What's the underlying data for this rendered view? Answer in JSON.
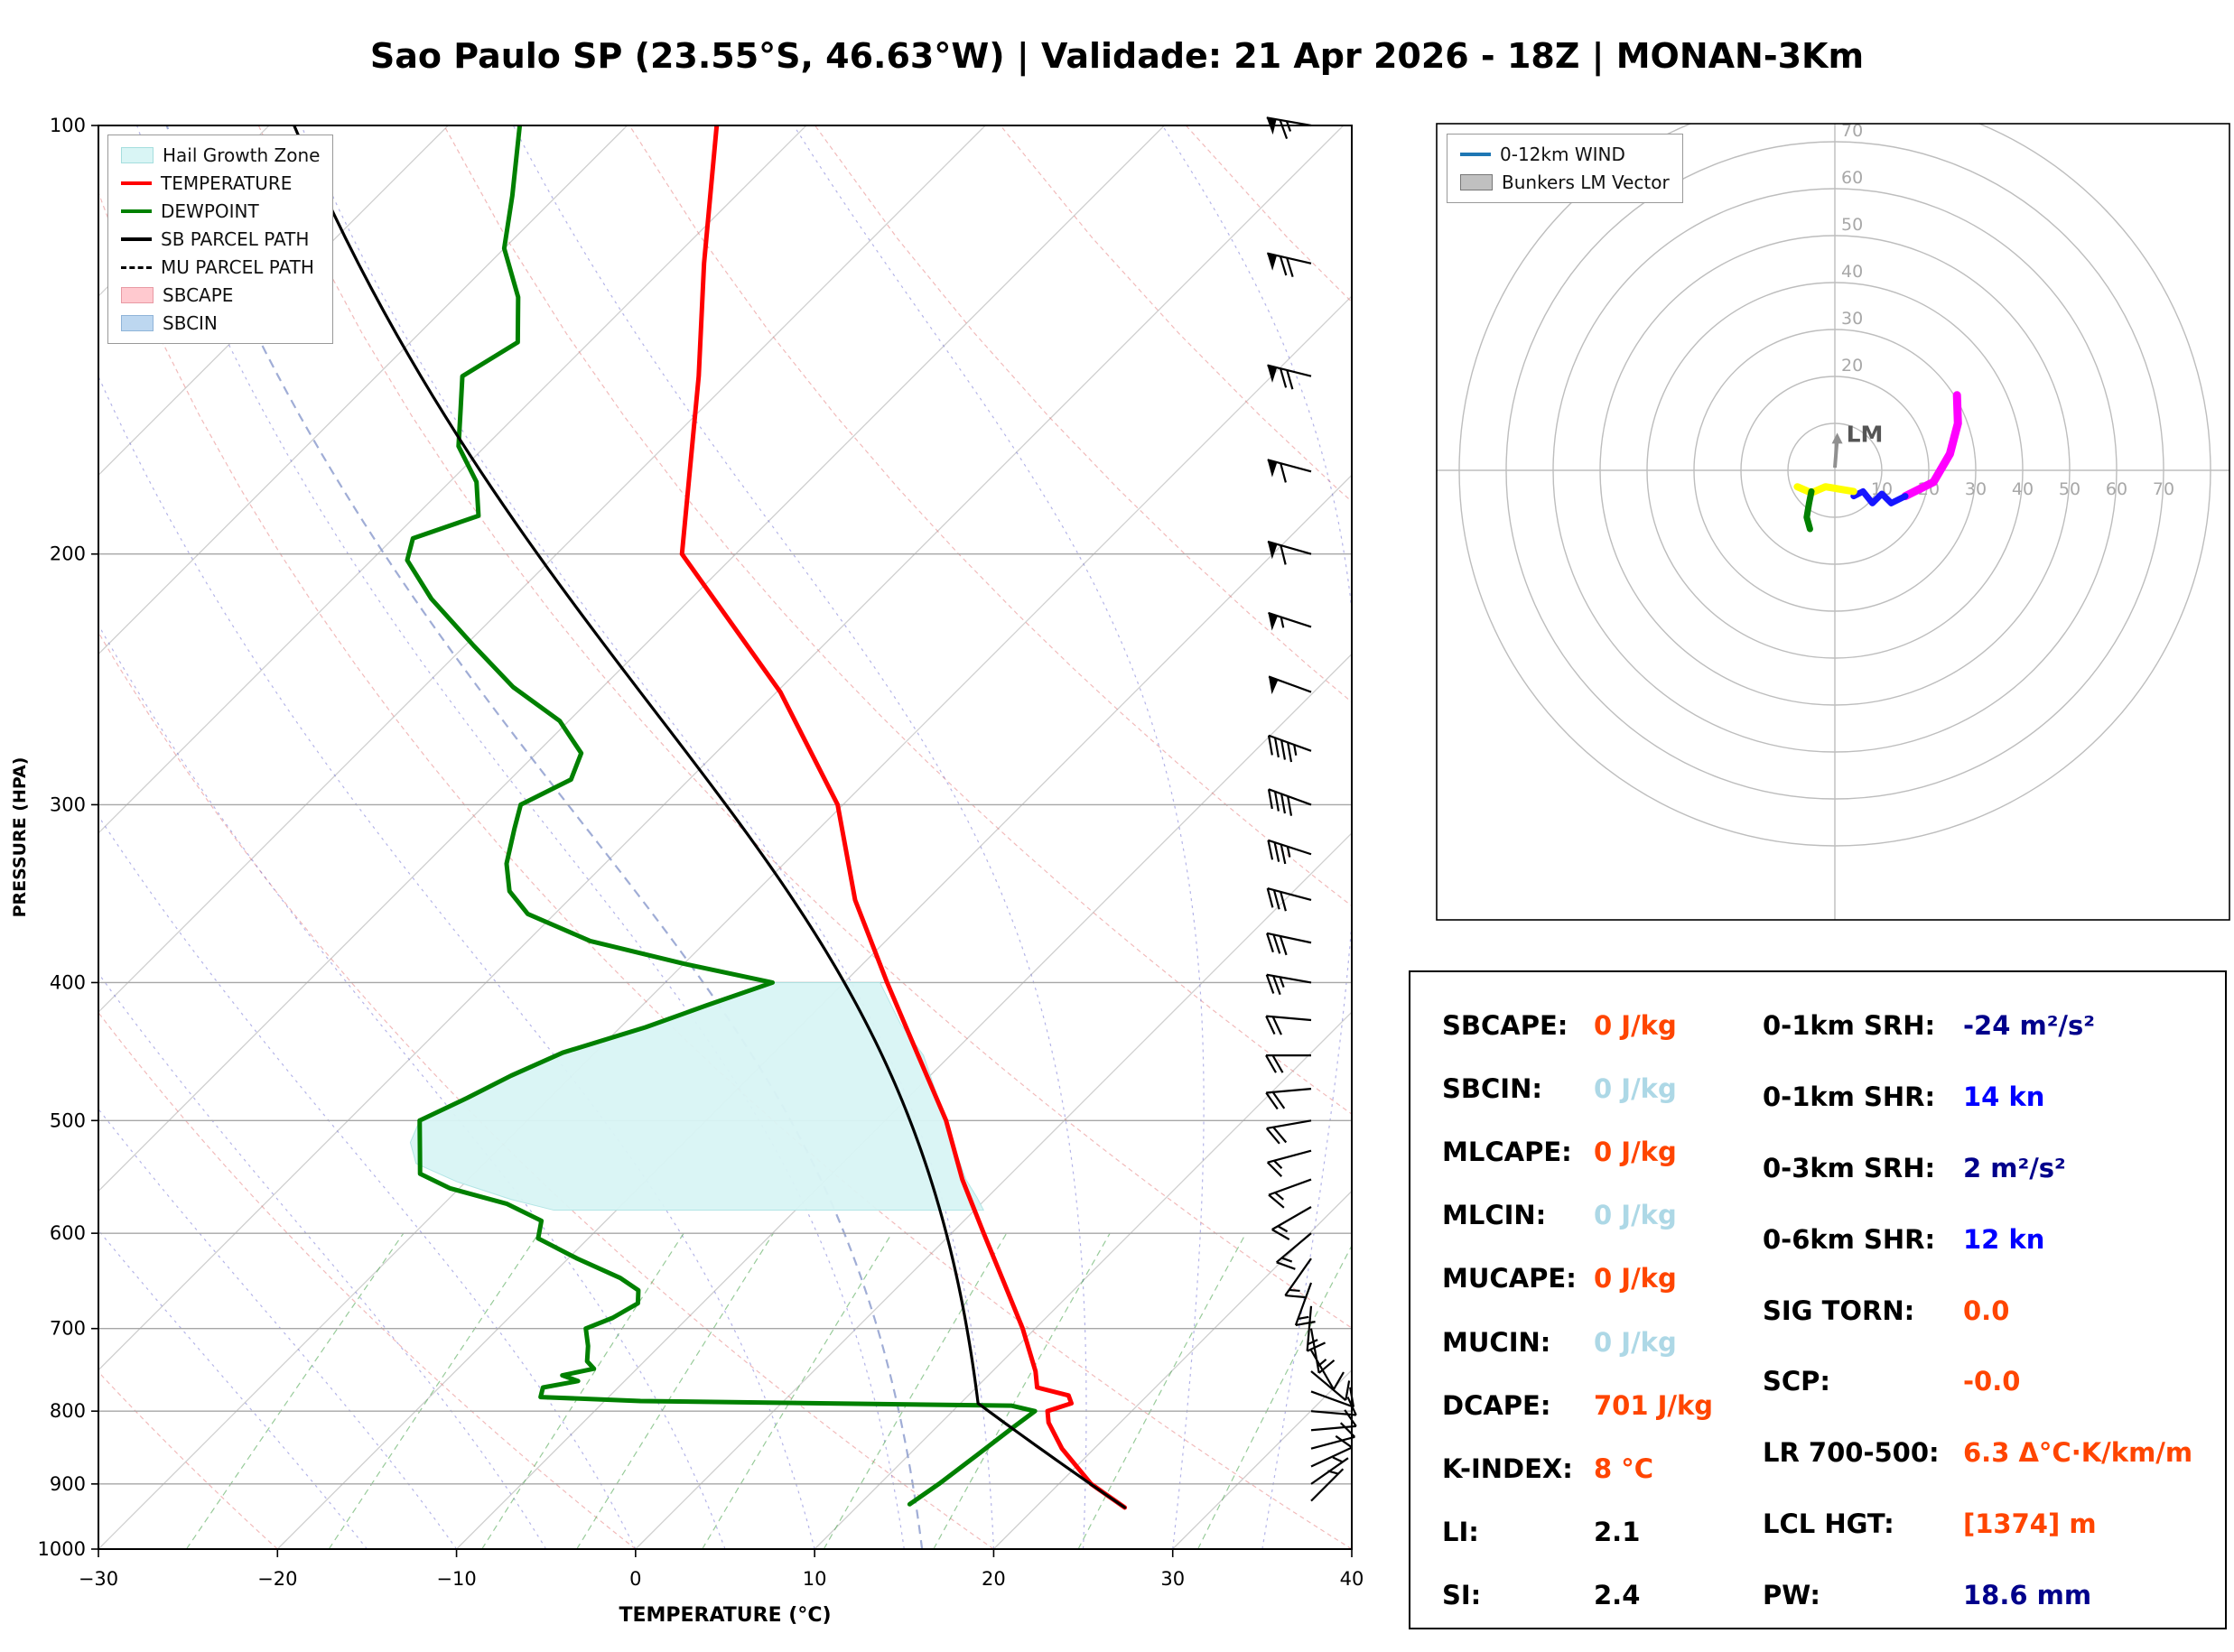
{
  "title": "Sao Paulo SP (23.55°S, 46.63°W) | Validade: 21 Apr 2026 - 18Z | MONAN-3Km",
  "chart_data": [
    {
      "type": "line",
      "name": "skewt",
      "xlabel": "TEMPERATURE (°C)",
      "ylabel": "PRESSURE (HPA)",
      "xlim": [
        -30,
        40
      ],
      "ylim": [
        1000,
        100
      ],
      "x_ticks": [
        -30,
        -20,
        -10,
        0,
        10,
        20,
        30,
        40
      ],
      "y_ticks": [
        100,
        200,
        300,
        400,
        500,
        600,
        700,
        800,
        900,
        1000
      ],
      "grid": true,
      "legend_position": "upper left",
      "legend": [
        {
          "label": "Hail Growth Zone",
          "type": "patch",
          "color": "#d9f5f5",
          "edge": "#a5dede"
        },
        {
          "label": "TEMPERATURE",
          "type": "line",
          "color": "#ff0000"
        },
        {
          "label": "DEWPOINT",
          "type": "line",
          "color": "#008000"
        },
        {
          "label": "SB PARCEL PATH",
          "type": "line",
          "color": "#000000"
        },
        {
          "label": "MU PARCEL PATH",
          "type": "dashed",
          "color": "#000000"
        },
        {
          "label": "SBCAPE",
          "type": "patch",
          "color": "#ffc9cf",
          "edge": "#e89aa4"
        },
        {
          "label": "SBCIN",
          "type": "patch",
          "color": "#bdd7f0",
          "edge": "#8fb4d8"
        }
      ],
      "temperature_profile": [
        [
          935,
          25
        ],
        [
          900,
          21.8
        ],
        [
          850,
          18.2
        ],
        [
          815,
          16.0
        ],
        [
          800,
          15.3
        ],
        [
          790,
          16.2
        ],
        [
          780,
          15.6
        ],
        [
          770,
          13.4
        ],
        [
          750,
          12.4
        ],
        [
          700,
          9.3
        ],
        [
          650,
          5.7
        ],
        [
          600,
          1.8
        ],
        [
          550,
          -2.4
        ],
        [
          500,
          -6.6
        ],
        [
          450,
          -11.8
        ],
        [
          400,
          -17.6
        ],
        [
          350,
          -24.0
        ],
        [
          300,
          -30.3
        ],
        [
          250,
          -39.8
        ],
        [
          200,
          -53.0
        ],
        [
          150,
          -62.0
        ],
        [
          125,
          -68.0
        ],
        [
          100,
          -75.0
        ]
      ],
      "dewpoint_profile": [
        [
          930,
          12.8
        ],
        [
          900,
          13.3
        ],
        [
          860,
          13.8
        ],
        [
          820,
          14.3
        ],
        [
          800,
          14.6
        ],
        [
          793,
          13.0
        ],
        [
          787,
          -8.0
        ],
        [
          782,
          -13.8
        ],
        [
          770,
          -14.2
        ],
        [
          762,
          -12.6
        ],
        [
          755,
          -13.8
        ],
        [
          747,
          -12.4
        ],
        [
          738,
          -13.2
        ],
        [
          720,
          -14.0
        ],
        [
          700,
          -15.1
        ],
        [
          688,
          -14.2
        ],
        [
          672,
          -13.6
        ],
        [
          658,
          -14.3
        ],
        [
          645,
          -16.0
        ],
        [
          625,
          -19.5
        ],
        [
          605,
          -22.8
        ],
        [
          588,
          -23.6
        ],
        [
          572,
          -26.5
        ],
        [
          558,
          -30.5
        ],
        [
          545,
          -33.0
        ],
        [
          525,
          -34.3
        ],
        [
          500,
          -36.0
        ],
        [
          482,
          -34.6
        ],
        [
          465,
          -33.4
        ],
        [
          448,
          -31.8
        ],
        [
          430,
          -28.6
        ],
        [
          415,
          -26.4
        ],
        [
          400,
          -24.0
        ],
        [
          388,
          -30.0
        ],
        [
          374,
          -36.5
        ],
        [
          358,
          -41.5
        ],
        [
          345,
          -43.8
        ],
        [
          330,
          -45.5
        ],
        [
          312,
          -47.0
        ],
        [
          300,
          -48.0
        ],
        [
          288,
          -46.6
        ],
        [
          276,
          -47.5
        ],
        [
          262,
          -50.5
        ],
        [
          248,
          -55.0
        ],
        [
          232,
          -59.5
        ],
        [
          215,
          -64.5
        ],
        [
          202,
          -68.0
        ],
        [
          195,
          -68.9
        ],
        [
          188,
          -66.5
        ],
        [
          178,
          -68.5
        ],
        [
          168,
          -71.5
        ],
        [
          158,
          -73.5
        ],
        [
          150,
          -75.2
        ],
        [
          142,
          -74.0
        ],
        [
          132,
          -76.5
        ],
        [
          122,
          -80.0
        ],
        [
          112,
          -82.5
        ],
        [
          100,
          -86.0
        ]
      ],
      "parcel": {
        "surface_p": 935,
        "surface_t": 25,
        "lcl_p": 790
      },
      "hail_growth_zone": [
        [
          -24,
          400
        ],
        [
          -18,
          400
        ],
        [
          -14.5,
          428
        ],
        [
          -11.5,
          450
        ],
        [
          -9,
          475
        ],
        [
          -6.6,
          500
        ],
        [
          -4.3,
          526
        ],
        [
          -2.2,
          550
        ],
        [
          -0.6,
          566
        ],
        [
          0.5,
          578
        ],
        [
          -23.5,
          578
        ],
        [
          -26.5,
          568
        ],
        [
          -30.5,
          552
        ],
        [
          -33.8,
          536
        ],
        [
          -35.3,
          518
        ],
        [
          -36,
          500
        ],
        [
          -34.6,
          482
        ],
        [
          -33.2,
          462
        ],
        [
          -31.5,
          448
        ],
        [
          -28.4,
          428
        ],
        [
          -26.3,
          414
        ]
      ],
      "wind_barbs": [
        [
          925,
          5,
          45
        ],
        [
          900,
          5,
          55
        ],
        [
          875,
          8,
          65
        ],
        [
          850,
          9,
          75
        ],
        [
          825,
          9,
          85
        ],
        [
          800,
          10,
          95
        ],
        [
          775,
          10,
          110
        ],
        [
          750,
          10,
          130
        ],
        [
          725,
          12,
          150
        ],
        [
          700,
          13,
          170
        ],
        [
          675,
          13,
          185
        ],
        [
          650,
          14,
          200
        ],
        [
          625,
          14,
          215
        ],
        [
          600,
          15,
          230
        ],
        [
          575,
          15,
          240
        ],
        [
          550,
          15,
          250
        ],
        [
          525,
          16,
          255
        ],
        [
          500,
          18,
          260
        ],
        [
          475,
          19,
          265
        ],
        [
          450,
          20,
          270
        ],
        [
          425,
          22,
          275
        ],
        [
          400,
          25,
          280
        ],
        [
          375,
          28,
          282
        ],
        [
          350,
          32,
          285
        ],
        [
          325,
          36,
          288
        ],
        [
          300,
          40,
          290
        ],
        [
          275,
          45,
          290
        ],
        [
          250,
          50,
          290
        ],
        [
          225,
          55,
          288
        ],
        [
          200,
          58,
          286
        ],
        [
          175,
          62,
          285
        ],
        [
          150,
          68,
          284
        ],
        [
          125,
          72,
          283
        ],
        [
          100,
          65,
          280
        ]
      ],
      "background": {
        "isotherms": {
          "from": -120,
          "to": 40,
          "step": 10
        },
        "dry_adiabats": {
          "from": -60,
          "to": 260,
          "step": 20
        },
        "moist_adiabats": {
          "from": -15,
          "to": 40,
          "step": 5
        },
        "special_moist_adiabat": 16,
        "mixing_ratio": [
          0.5,
          1,
          2,
          3,
          5,
          8,
          12,
          20,
          30
        ]
      }
    },
    {
      "type": "line",
      "name": "hodograph",
      "rings": [
        10,
        20,
        30,
        40,
        50,
        60,
        70,
        80
      ],
      "ring_labels_vertical": [
        20,
        30,
        40,
        50,
        60,
        70
      ],
      "ring_labels_horizontal": [
        10,
        20,
        30,
        40,
        50,
        60,
        70
      ],
      "segments": [
        {
          "name": "segment-upper",
          "color": "#ff00ff",
          "width": 9,
          "points": [
            [
              26,
              16
            ],
            [
              26.2,
              10
            ],
            [
              24.5,
              3.5
            ],
            [
              21,
              -2.5
            ],
            [
              16,
              -5
            ],
            [
              15,
              -5.5
            ]
          ]
        },
        {
          "name": "segment-mid",
          "color": "#1515ff",
          "width": 7,
          "points": [
            [
              15,
              -5.5
            ],
            [
              12,
              -7
            ],
            [
              10,
              -5
            ],
            [
              8,
              -7
            ],
            [
              6,
              -4.5
            ],
            [
              4,
              -5.5
            ]
          ]
        },
        {
          "name": "segment-low",
          "color": "#ffff00",
          "width": 8,
          "points": [
            [
              4,
              -4.5
            ],
            [
              1,
              -4
            ],
            [
              -2,
              -3.5
            ],
            [
              -5,
              -4.8
            ],
            [
              -8,
              -3.5
            ]
          ]
        },
        {
          "name": "segment-sfc",
          "color": "#008000",
          "width": 7,
          "points": [
            [
              -5,
              -4.5
            ],
            [
              -5.5,
              -7
            ],
            [
              -6,
              -10
            ],
            [
              -5.3,
              -12.5
            ]
          ]
        }
      ],
      "lm_vector": {
        "label": "LM",
        "u": 0.5,
        "v": 8
      },
      "legend": [
        {
          "label": "0-12km WIND",
          "type": "line",
          "color": "#1f77b4"
        },
        {
          "label": "Bunkers LM Vector",
          "type": "patch",
          "color": "#c0c0c0",
          "edge": "#777777"
        }
      ]
    },
    {
      "type": "table",
      "name": "indices",
      "left": [
        {
          "label": "SBCAPE:",
          "value": "0 J/kg",
          "color": "#ff4500"
        },
        {
          "label": "SBCIN:",
          "value": "0 J/kg",
          "color": "#add8e6"
        },
        {
          "label": "MLCAPE:",
          "value": "0 J/kg",
          "color": "#ff4500"
        },
        {
          "label": "MLCIN:",
          "value": "0 J/kg",
          "color": "#add8e6"
        },
        {
          "label": "MUCAPE:",
          "value": "0 J/kg",
          "color": "#ff4500"
        },
        {
          "label": "MUCIN:",
          "value": "0 J/kg",
          "color": "#add8e6"
        },
        {
          "label": "DCAPE:",
          "value": "701 J/kg",
          "color": "#ff4500"
        },
        {
          "label": "K-INDEX:",
          "value": "8 °C",
          "color": "#ff4500"
        },
        {
          "label": "LI:",
          "value": "2.1",
          "color": "#000000"
        },
        {
          "label": "SI:",
          "value": "2.4",
          "color": "#000000"
        }
      ],
      "right": [
        {
          "label": "0-1km SRH:",
          "value": "-24 m²/s²",
          "color": "#00008b"
        },
        {
          "label": "0-1km SHR:",
          "value": "14 kn",
          "color": "#0000ff"
        },
        {
          "label": "0-3km SRH:",
          "value": "2 m²/s²",
          "color": "#00008b"
        },
        {
          "label": "0-6km SHR:",
          "value": "12 kn",
          "color": "#0000ff"
        },
        {
          "label": "SIG TORN:",
          "value": "0.0",
          "color": "#ff4500"
        },
        {
          "label": "SCP:",
          "value": "-0.0",
          "color": "#ff4500"
        },
        {
          "label": "LR 700-500:",
          "value": "6.3 Δ°C·K/km/m",
          "color": "#ff4500"
        },
        {
          "label": "LCL HGT:",
          "value": "[1374] m",
          "color": "#ff4500"
        },
        {
          "label": "PW:",
          "value": "18.6 mm",
          "color": "#00008b"
        }
      ]
    }
  ]
}
